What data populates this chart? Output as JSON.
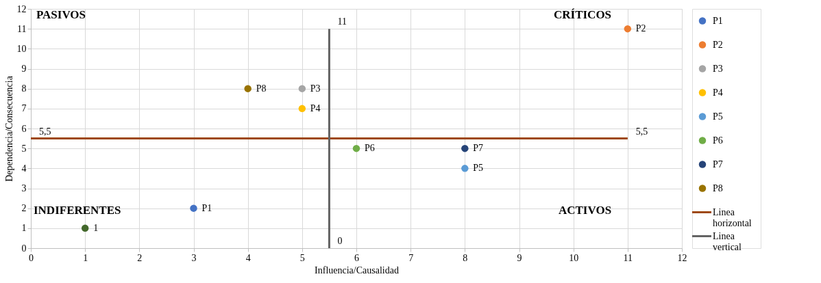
{
  "chart_data": {
    "type": "scatter",
    "xlabel": "Influencia/Causalidad",
    "ylabel": "Dependencia/Consecuencia",
    "xlim": [
      0,
      12
    ],
    "ylim": [
      0,
      12
    ],
    "xticks": [
      0,
      1,
      2,
      3,
      4,
      5,
      6,
      7,
      8,
      9,
      10,
      11,
      12
    ],
    "yticks": [
      0,
      1,
      2,
      3,
      4,
      5,
      6,
      7,
      8,
      9,
      10,
      11,
      12
    ],
    "grid": true,
    "legend": "right",
    "marker": "circle",
    "series": [
      {
        "name": "P1",
        "color": "#4472c4",
        "x": [
          3
        ],
        "values": [
          2
        ]
      },
      {
        "name": "P2",
        "color": "#ed7d31",
        "x": [
          11
        ],
        "values": [
          11
        ]
      },
      {
        "name": "P3",
        "color": "#a5a5a5",
        "x": [
          5
        ],
        "values": [
          8
        ]
      },
      {
        "name": "P4",
        "color": "#ffc000",
        "x": [
          5
        ],
        "values": [
          7
        ]
      },
      {
        "name": "P5",
        "color": "#5b9bd5",
        "x": [
          8
        ],
        "values": [
          4
        ]
      },
      {
        "name": "P6",
        "color": "#70ad47",
        "x": [
          6
        ],
        "values": [
          5
        ]
      },
      {
        "name": "P7",
        "color": "#264478",
        "x": [
          8
        ],
        "values": [
          5
        ]
      },
      {
        "name": "P8",
        "color": "#997300",
        "x": [
          4
        ],
        "values": [
          8
        ]
      },
      {
        "color": "#43682b",
        "x": [
          1
        ],
        "values": [
          1
        ]
      },
      {
        "name": "Linea horizontal",
        "type": "line",
        "color": "#9e480e",
        "marker": "none",
        "line_style": "solid",
        "x": [
          0,
          11
        ],
        "values": [
          5.5,
          5.5
        ],
        "value_labels": [
          "5,5",
          "5,5"
        ]
      },
      {
        "name": "Linea vertical",
        "type": "line",
        "color": "#636363",
        "marker": "none",
        "line_style": "solid",
        "x": [
          5.5,
          5.5
        ],
        "values": [
          0,
          11
        ],
        "value_labels": [
          "0",
          "11"
        ]
      }
    ],
    "annotations": [
      "PASIVOS",
      "CRÍTICOS",
      "INDIFERENTES",
      "ACTIVOS",
      {
        "text": "1",
        "x": 1,
        "y": 1
      }
    ]
  }
}
